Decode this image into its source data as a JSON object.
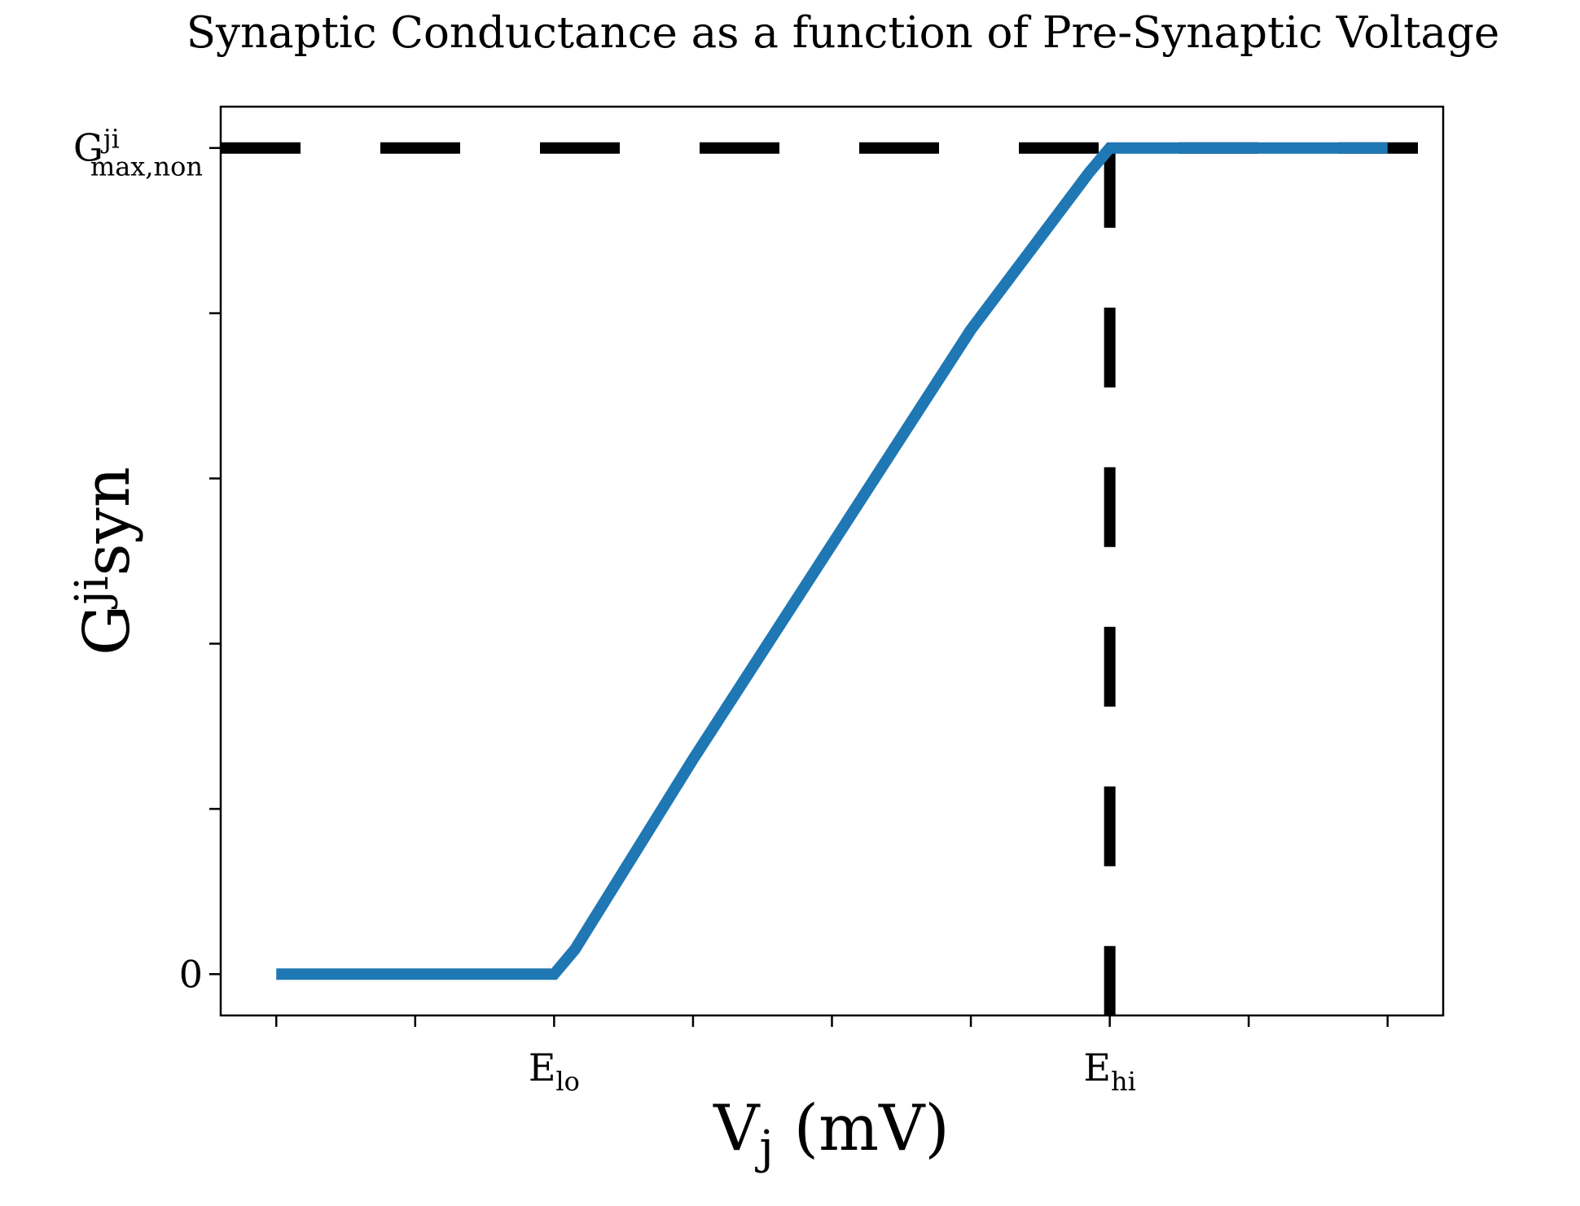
{
  "chart_data": {
    "type": "line",
    "title": "Synaptic Conductance as a function of Pre-Synaptic Voltage",
    "xlabel": {
      "main": "V",
      "sub": "j",
      "rest": " (mV)"
    },
    "ylabel": {
      "main": "G",
      "sup": "ji",
      "sub": "syn"
    },
    "x_tick_labels": [
      {
        "x": 2,
        "main": "E",
        "sub": "lo"
      },
      {
        "x": 6,
        "main": "E",
        "sub": "hi"
      }
    ],
    "y_tick_labels": [
      {
        "y": 0,
        "main": "0",
        "sup": "",
        "sub": ""
      },
      {
        "y": 1,
        "main": "G",
        "sup": "ji",
        "sub": "max,non"
      }
    ],
    "x_ticks": [
      0,
      1,
      2,
      3,
      4,
      5,
      6,
      7,
      8
    ],
    "y_ticks": [
      0,
      0.2,
      0.4,
      0.6,
      0.8,
      1.0
    ],
    "xlim": [
      -0.4,
      8.4
    ],
    "ylim": [
      -0.05,
      1.05
    ],
    "series": [
      {
        "color": "#1f77b4",
        "style": "solid",
        "points": [
          [
            0,
            0
          ],
          [
            2.0,
            0
          ],
          [
            2.15,
            0.03
          ],
          [
            3.0,
            0.26
          ],
          [
            4.0,
            0.52
          ],
          [
            5.0,
            0.78
          ],
          [
            5.85,
            0.97
          ],
          [
            6.0,
            1.0
          ],
          [
            8.0,
            1.0
          ]
        ]
      }
    ],
    "reference_lines": [
      {
        "orientation": "horizontal",
        "y": 1.0,
        "color": "#000000",
        "style": "dashed"
      },
      {
        "orientation": "vertical",
        "x": 6.0,
        "color": "#000000",
        "style": "dashed"
      }
    ],
    "grid": false
  }
}
